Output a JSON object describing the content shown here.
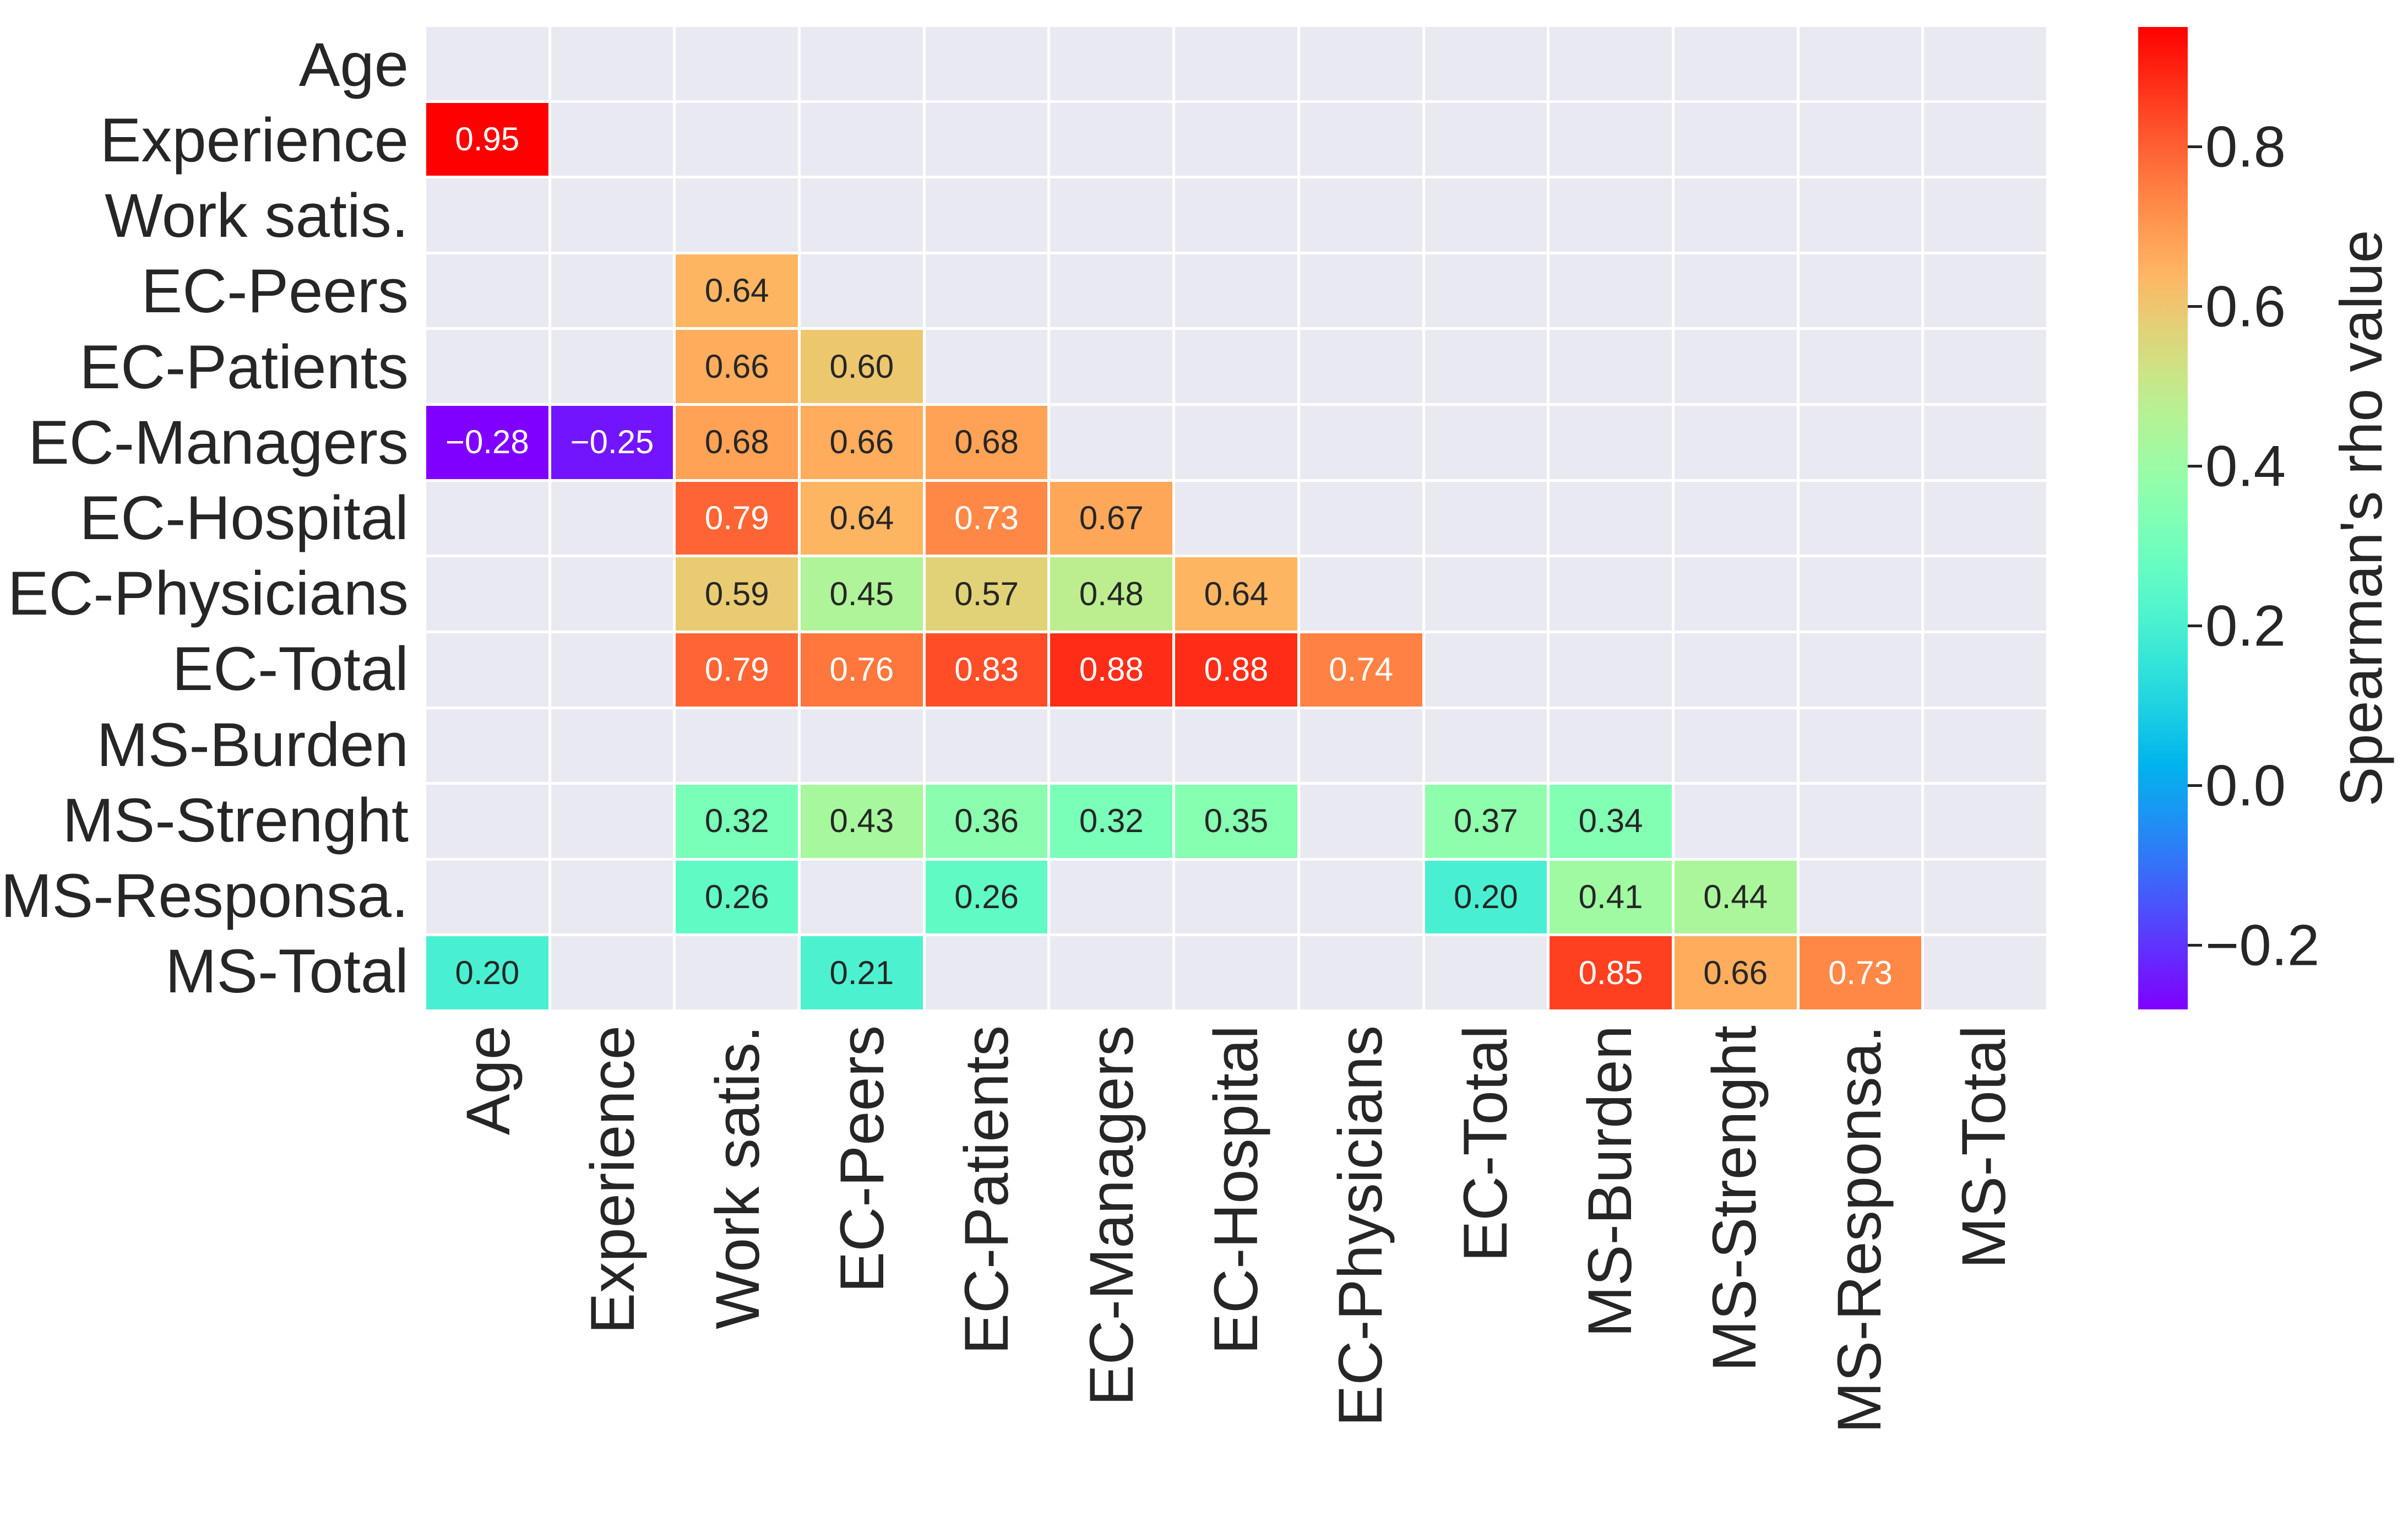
{
  "figure": {
    "background": "#ffffff",
    "plot_bg": "#e9e9f2",
    "grid_color": "#ffffff",
    "text_color": "#262626",
    "annot_dark_color": "#262626",
    "annot_light_color": "#ffffff"
  },
  "chart_data": {
    "type": "heatmap",
    "title": "",
    "xlabel": "",
    "ylabel": "",
    "x_labels": [
      "Age",
      "Experience",
      "Work satis.",
      "EC-Peers",
      "EC-Patients",
      "EC-Managers",
      "EC-Hospital",
      "EC-Physicians",
      "EC-Total",
      "MS-Burden",
      "MS-Strenght",
      "MS-Responsa.",
      "MS-Total"
    ],
    "y_labels": [
      "Age",
      "Experience",
      "Work satis.",
      "EC-Peers",
      "EC-Patients",
      "EC-Managers",
      "EC-Hospital",
      "EC-Physicians",
      "EC-Total",
      "MS-Burden",
      "MS-Strenght",
      "MS-Responsa.",
      "MS-Total"
    ],
    "matrix": [
      [
        null,
        null,
        null,
        null,
        null,
        null,
        null,
        null,
        null,
        null,
        null,
        null,
        null
      ],
      [
        0.95,
        null,
        null,
        null,
        null,
        null,
        null,
        null,
        null,
        null,
        null,
        null,
        null
      ],
      [
        null,
        null,
        null,
        null,
        null,
        null,
        null,
        null,
        null,
        null,
        null,
        null,
        null
      ],
      [
        null,
        null,
        0.64,
        null,
        null,
        null,
        null,
        null,
        null,
        null,
        null,
        null,
        null
      ],
      [
        null,
        null,
        0.66,
        0.6,
        null,
        null,
        null,
        null,
        null,
        null,
        null,
        null,
        null
      ],
      [
        -0.28,
        -0.25,
        0.68,
        0.66,
        0.68,
        null,
        null,
        null,
        null,
        null,
        null,
        null,
        null
      ],
      [
        null,
        null,
        0.79,
        0.64,
        0.73,
        0.67,
        null,
        null,
        null,
        null,
        null,
        null,
        null
      ],
      [
        null,
        null,
        0.59,
        0.45,
        0.57,
        0.48,
        0.64,
        null,
        null,
        null,
        null,
        null,
        null
      ],
      [
        null,
        null,
        0.79,
        0.76,
        0.83,
        0.88,
        0.88,
        0.74,
        null,
        null,
        null,
        null,
        null
      ],
      [
        null,
        null,
        null,
        null,
        null,
        null,
        null,
        null,
        null,
        null,
        null,
        null,
        null
      ],
      [
        null,
        null,
        0.32,
        0.43,
        0.36,
        0.32,
        0.35,
        null,
        0.37,
        0.34,
        null,
        null,
        null
      ],
      [
        null,
        null,
        0.26,
        null,
        0.26,
        null,
        null,
        null,
        0.2,
        0.41,
        0.44,
        null,
        null
      ],
      [
        0.2,
        null,
        null,
        0.21,
        null,
        null,
        null,
        null,
        null,
        0.85,
        0.66,
        0.73,
        null
      ]
    ],
    "colormap": "rainbow",
    "vmin": -0.28,
    "vmax": 0.95,
    "annotation_decimals": 2,
    "grid": true,
    "legend_position": "right",
    "colorbar": {
      "label": "Spearman's rho value",
      "ticks": [
        0.8,
        0.6,
        0.4,
        0.2,
        0.0,
        -0.2
      ],
      "tick_decimals": 1
    }
  }
}
